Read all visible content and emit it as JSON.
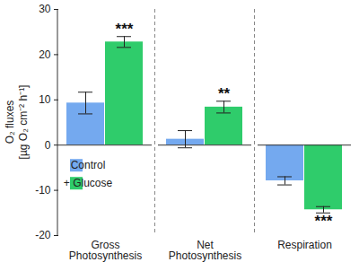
{
  "chart_data": {
    "type": "bar",
    "categories": [
      "Gross Photosynthesis",
      "Net Photosynthesis",
      "Respiration"
    ],
    "series": [
      {
        "name": "Control",
        "color": "#74a9ef",
        "values": [
          9.3,
          1.3,
          -7.9
        ],
        "errors": [
          2.4,
          1.9,
          0.9
        ]
      },
      {
        "name": "+ Glucose",
        "color": "#2fcc6b",
        "values": [
          22.8,
          8.4,
          -14.3
        ],
        "errors": [
          1.2,
          1.3,
          0.7
        ]
      }
    ],
    "ylabel": "O₂ fluxes\n[µg O₂ cm⁻² h⁻¹]",
    "ylim": [
      -20,
      30
    ],
    "yticks": [
      -20,
      -10,
      0,
      10,
      20,
      30
    ],
    "legend": "left",
    "annotations": [
      {
        "category": "Gross Photosynthesis",
        "series": "+ Glucose",
        "text": "***"
      },
      {
        "category": "Net Photosynthesis",
        "series": "+ Glucose",
        "text": "**"
      },
      {
        "category": "Respiration",
        "series": "+ Glucose",
        "text": "***"
      }
    ]
  }
}
